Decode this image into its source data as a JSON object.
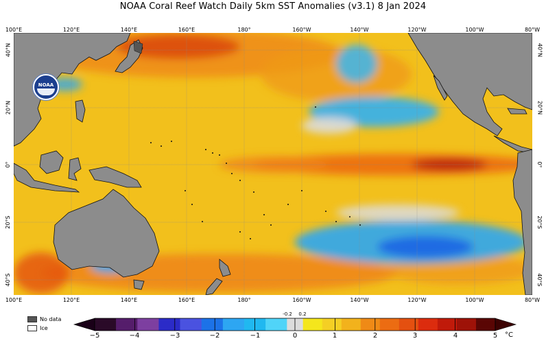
{
  "title": "NOAA Coral Reef Watch Daily 5km SST Anomalies  (v3.1)   8 Jan 2024",
  "logo_text": "NOAA",
  "longitude_ticks": [
    "100°E",
    "120°E",
    "140°E",
    "160°E",
    "180°",
    "160°W",
    "140°W",
    "120°W",
    "100°W",
    "80°W"
  ],
  "latitude_ticks": [
    "40°N",
    "20°N",
    "0°",
    "20°S",
    "40°S"
  ],
  "legend": {
    "no_data_label": "No data",
    "ice_label": "Ice",
    "no_data_color": "#555555",
    "ice_color": "#ffffff"
  },
  "colorbar": {
    "unit": "°C",
    "labels": [
      "−5",
      "−4",
      "−3",
      "−2",
      "−1",
      "0",
      "1",
      "2",
      "3",
      "4",
      "5"
    ],
    "neutral_labels": [
      "-0.2",
      "0.2"
    ],
    "range": [
      -5,
      5
    ],
    "neutral_range": [
      -0.2,
      0.2
    ],
    "colors": [
      "#2a0a28",
      "#551d6b",
      "#7d3fa0",
      "#2b2bc8",
      "#4a52e0",
      "#1c72e8",
      "#2da6f2",
      "#20b8f0",
      "#50d4f8",
      "#dcdcdc",
      "#f4e61c",
      "#f4cf24",
      "#f2b21c",
      "#ef8a16",
      "#ec6c12",
      "#e45010",
      "#dc2c0e",
      "#c01a0a",
      "#9e1208",
      "#5a0604"
    ]
  },
  "colors": {
    "land": "#8c8c8c",
    "base": "#f2c01c",
    "warm": "#ec7a12",
    "hot": "#c02a0c",
    "cool": "#2da6f2",
    "cold": "#1c58e0",
    "neutral": "#dcdcdc"
  }
}
